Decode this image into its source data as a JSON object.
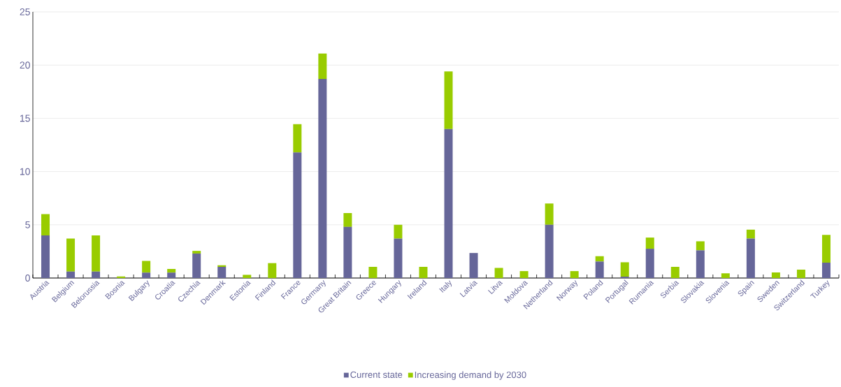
{
  "chart_data": {
    "type": "bar",
    "stacked": true,
    "categories": [
      "Austria",
      "Belgium",
      "Belorussia",
      "Bosnia",
      "Bulgary",
      "Croatia",
      "Czechia",
      "Denmark",
      "Estonia",
      "Finland",
      "France",
      "Germany",
      "Great Britain",
      "Greece",
      "Hungary",
      "Ireland",
      "Italy",
      "Latvia",
      "Litva",
      "Moldova",
      "Netherland",
      "Norway",
      "Poland",
      "Portugal",
      "Rumania",
      "Serbia",
      "Slovakia",
      "Slovenia",
      "Spain",
      "Sweden",
      "Switzerland",
      "Turkey"
    ],
    "series": [
      {
        "name": "Current state",
        "color": "#666699",
        "values": [
          4,
          0.6,
          0.6,
          0,
          0.5,
          0.5,
          2.3,
          1.05,
          0,
          0,
          11.8,
          18.7,
          4.8,
          0,
          3.7,
          0,
          14,
          2.35,
          0,
          0,
          5,
          0,
          1.55,
          0.13,
          2.75,
          0,
          2.6,
          0,
          3.7,
          0,
          0,
          1.45
        ]
      },
      {
        "name": "Increasing demand by 2030",
        "color": "#99cc00",
        "values": [
          2,
          3.1,
          3.4,
          0.15,
          1.1,
          0.35,
          0.25,
          0.15,
          0.3,
          1.4,
          2.65,
          2.4,
          1.3,
          1.05,
          1.3,
          1.05,
          5.4,
          0,
          0.95,
          0.65,
          2,
          0.65,
          0.5,
          1.35,
          1.05,
          1.05,
          0.85,
          0.45,
          0.85,
          0.52,
          0.78,
          2.6
        ]
      }
    ],
    "ylim": [
      0,
      25
    ],
    "yticks": [
      0,
      5,
      10,
      15,
      20,
      25
    ],
    "grid": "y",
    "legend": "bottom"
  }
}
